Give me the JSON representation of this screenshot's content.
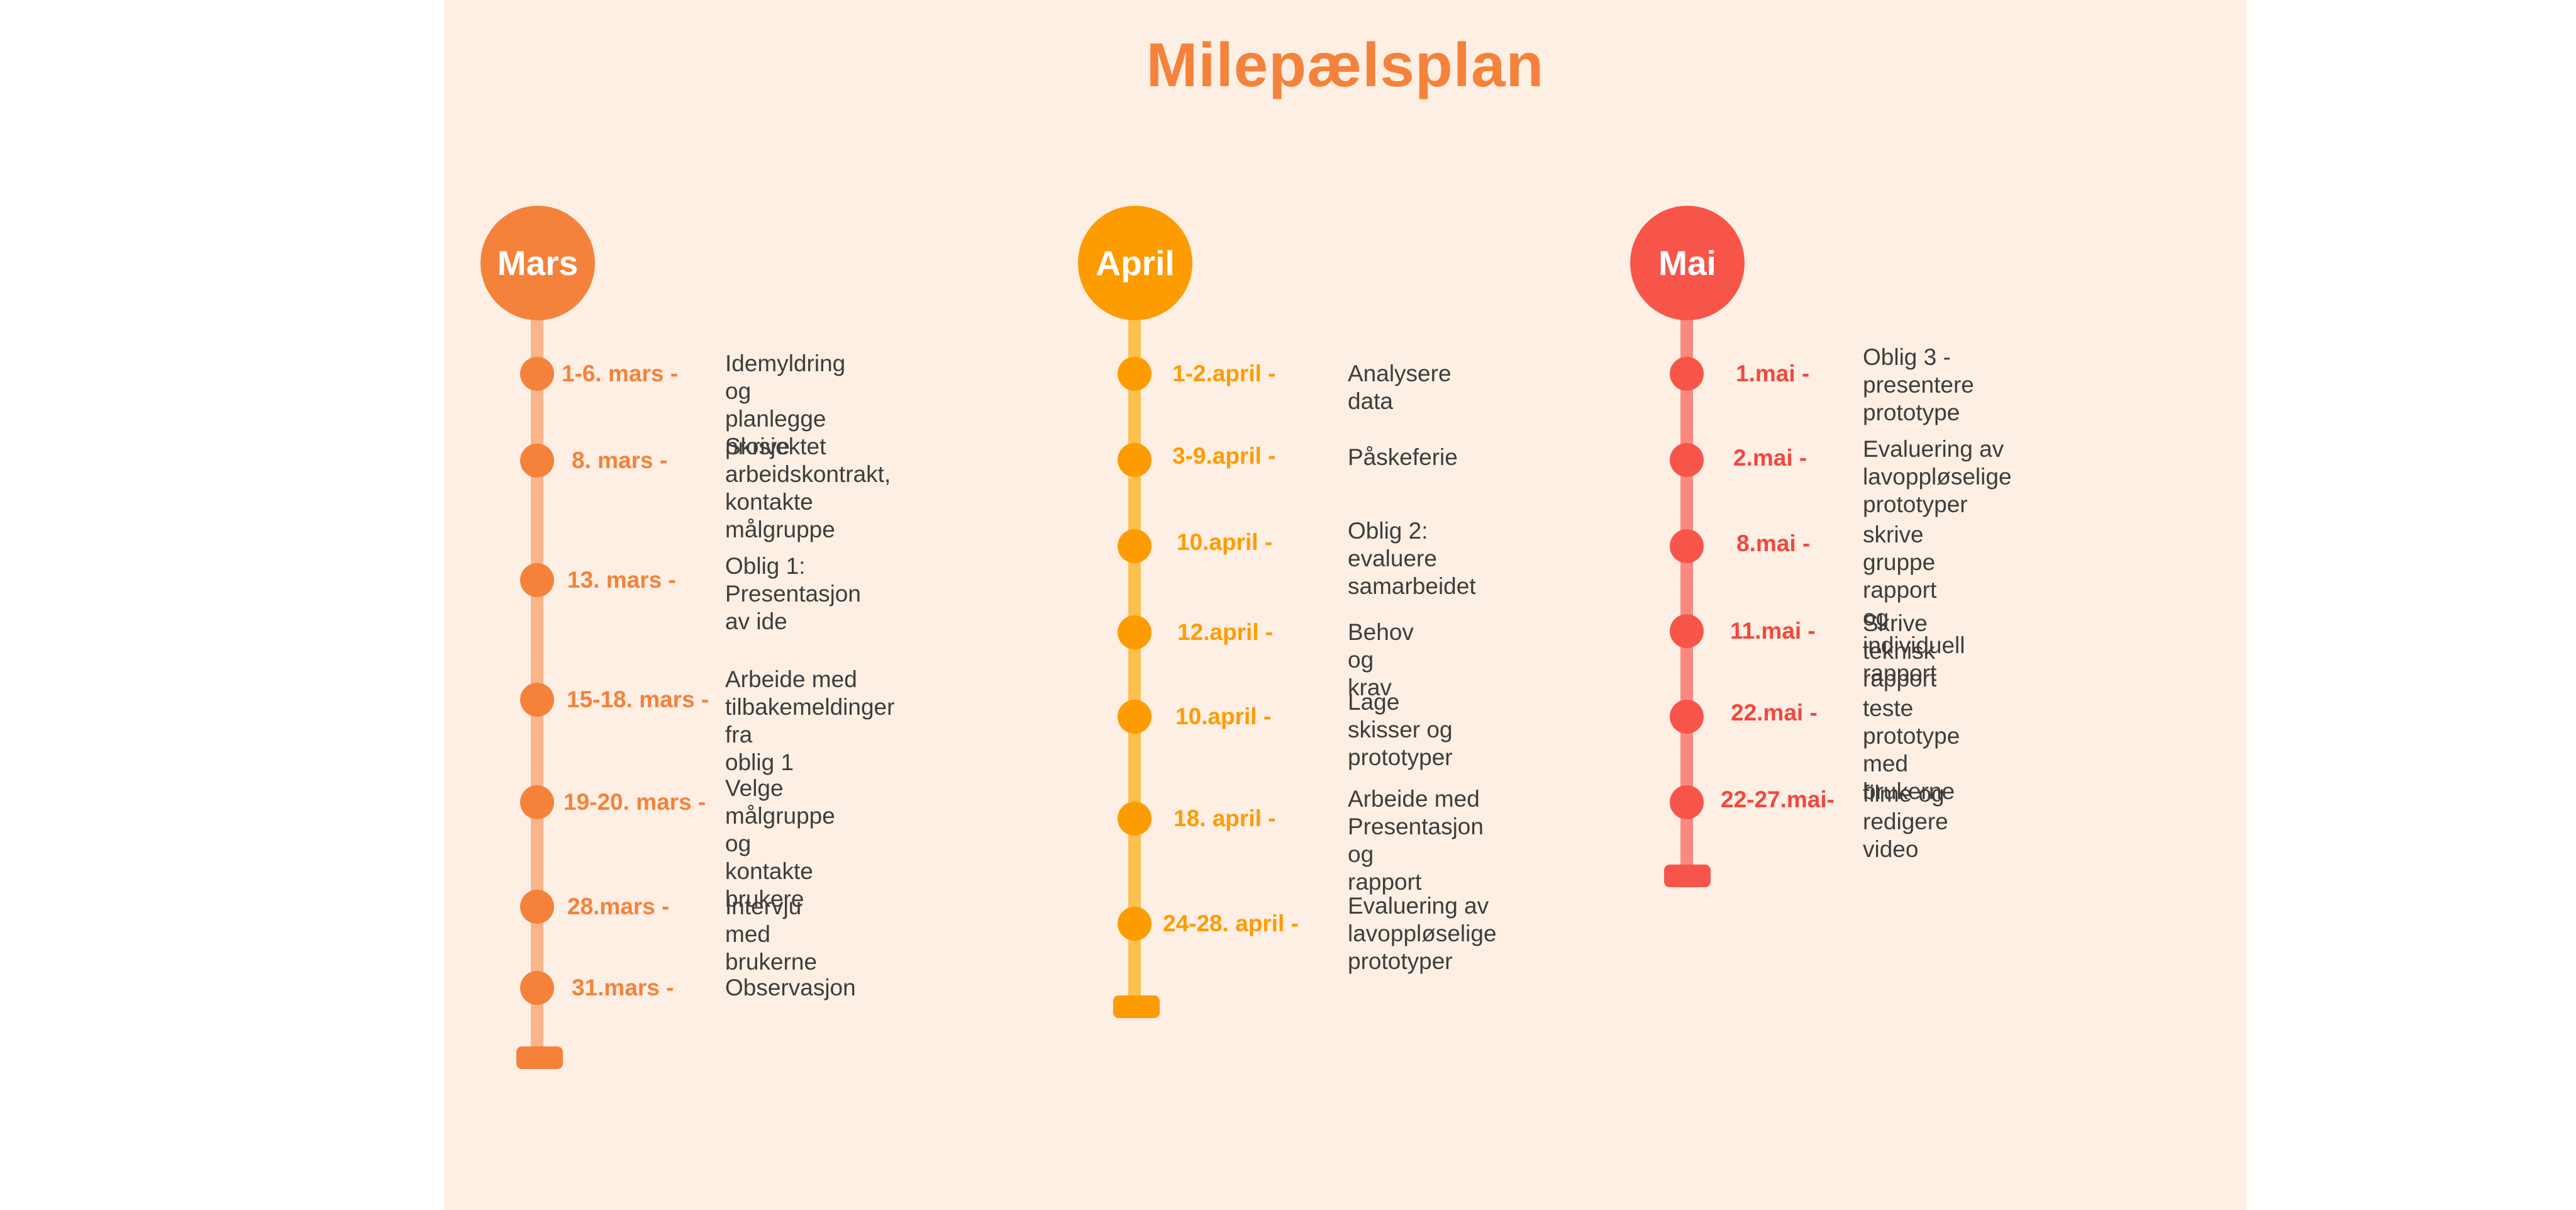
{
  "title": "Milepælsplan",
  "colors": {
    "background": "#fdefe4",
    "mars": "#f4823b",
    "april": "#fd9c00",
    "mai": "#f8554a",
    "text": "#3d3d3d"
  },
  "months": [
    {
      "name": "Mars",
      "items": [
        {
          "date": "1-6. mars -",
          "text": "Idemyldring og\nplanlegge prosjektet"
        },
        {
          "date": "8. mars -",
          "text": "Skrive\narbeidskontrakt,\nkontakte målgruppe"
        },
        {
          "date": "13. mars -",
          "text": "Oblig 1: Presentasjon\nav ide"
        },
        {
          "date": "15-18. mars -",
          "text": "Arbeide med\ntilbakemeldinger fra\noblig 1"
        },
        {
          "date": "19-20. mars -",
          "text": "Velge målgruppe og\nkontakte brukere"
        },
        {
          "date": "28.mars -",
          "text": "Intervju med brukerne"
        },
        {
          "date": "31.mars -",
          "text": "Observasjon"
        }
      ]
    },
    {
      "name": "April",
      "items": [
        {
          "date": "1-2.april -",
          "text": "Analysere data"
        },
        {
          "date": "3-9.april -",
          "text": "Påskeferie"
        },
        {
          "date": "10.april -",
          "text": "Oblig 2: evaluere\nsamarbeidet"
        },
        {
          "date": "12.april -",
          "text": "Behov og krav"
        },
        {
          "date": "10.april -",
          "text": "Lage skisser og\nprototyper"
        },
        {
          "date": "18. april -",
          "text": "Arbeide med\nPresentasjon og\nrapport"
        },
        {
          "date": "24-28. april -",
          "text": "Evaluering av\nlavoppløselige\nprototyper"
        }
      ]
    },
    {
      "name": "Mai",
      "items": [
        {
          "date": "1.mai -",
          "text": "Oblig 3 - presentere\nprototype"
        },
        {
          "date": "2.mai -",
          "text": "Evaluering av\nlavoppløselige prototyper"
        },
        {
          "date": "8.mai -",
          "text": "skrive gruppe rapport\nog individuell rapport"
        },
        {
          "date": "11.mai -",
          "text": "Skrive teknisk rapport"
        },
        {
          "date": "22.mai -",
          "text": "teste prototype med\nbrukerne"
        },
        {
          "date": "22-27.mai-",
          "text": "filme og redigere\nvideo"
        }
      ]
    }
  ]
}
